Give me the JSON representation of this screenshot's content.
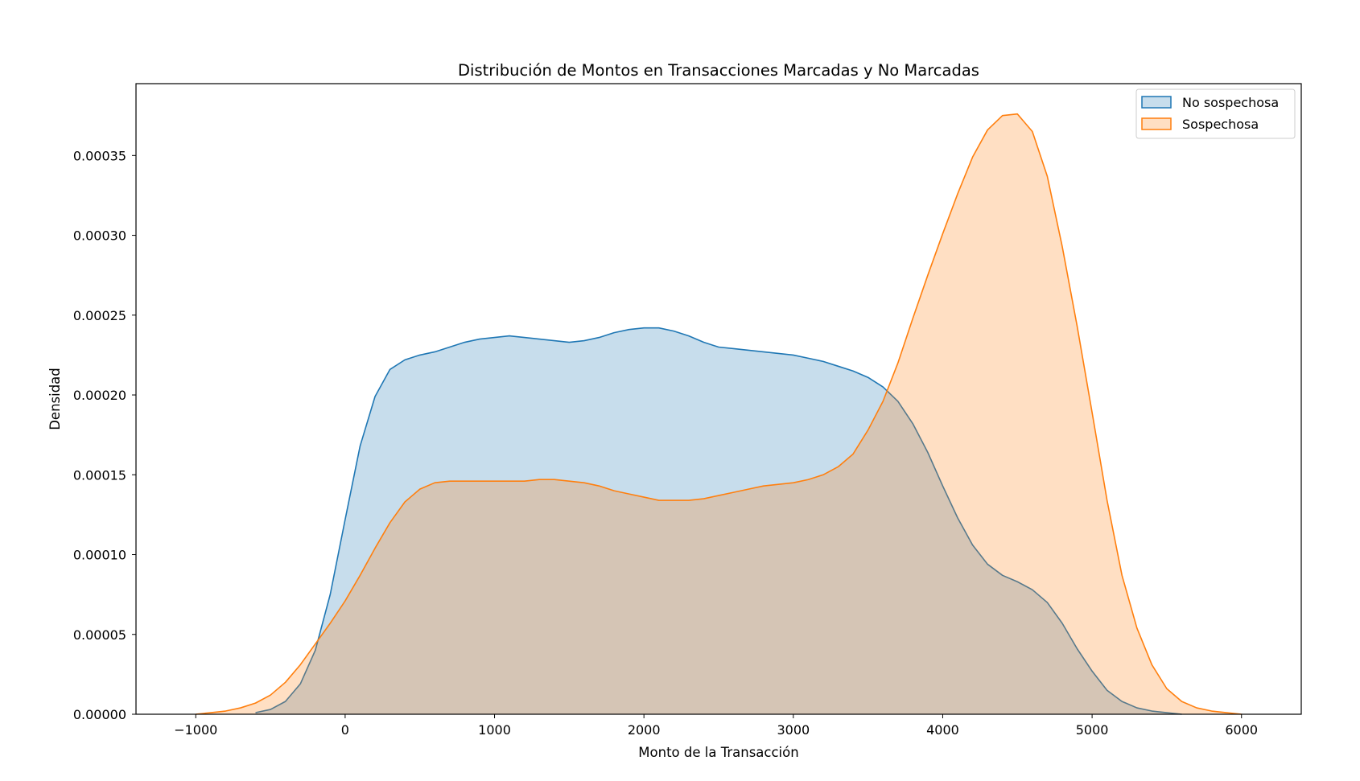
{
  "chart_data": {
    "type": "area",
    "title": "Distribución de Montos en Transacciones Marcadas y No Marcadas",
    "xlabel": "Monto de la Transacción",
    "ylabel": "Densidad",
    "xlim": [
      -1400,
      6400
    ],
    "ylim": [
      0,
      0.000395
    ],
    "xticks": [
      -1000,
      0,
      1000,
      2000,
      3000,
      4000,
      5000,
      6000
    ],
    "xtick_labels": [
      "−1000",
      "0",
      "1000",
      "2000",
      "3000",
      "4000",
      "5000",
      "6000"
    ],
    "yticks": [
      0,
      5e-05,
      0.0001,
      0.00015,
      0.0002,
      0.00025,
      0.0003,
      0.00035
    ],
    "ytick_labels": [
      "0.00000",
      "0.00005",
      "0.00010",
      "0.00015",
      "0.00020",
      "0.00025",
      "0.00030",
      "0.00035"
    ],
    "grid": false,
    "legend_position": "top-right",
    "series": [
      {
        "name": "No sospechosa",
        "line_color": "#1f77b4",
        "fill_color": "#1f77b4",
        "fill_opacity": 0.25,
        "x": [
          -600,
          -500,
          -400,
          -300,
          -200,
          -100,
          0,
          100,
          200,
          300,
          400,
          500,
          600,
          700,
          800,
          900,
          1000,
          1100,
          1200,
          1300,
          1400,
          1500,
          1600,
          1700,
          1800,
          1900,
          2000,
          2100,
          2200,
          2300,
          2400,
          2500,
          2600,
          2700,
          2800,
          2900,
          3000,
          3100,
          3200,
          3300,
          3400,
          3500,
          3600,
          3700,
          3800,
          3900,
          4000,
          4100,
          4200,
          4300,
          4400,
          4500,
          4600,
          4700,
          4800,
          4900,
          5000,
          5100,
          5200,
          5300,
          5400,
          5500,
          5600
        ],
        "y": [
          1e-06,
          3e-06,
          8e-06,
          1.9e-05,
          4e-05,
          7.5e-05,
          0.000122,
          0.000168,
          0.000199,
          0.000216,
          0.000222,
          0.000225,
          0.000227,
          0.00023,
          0.000233,
          0.000235,
          0.000236,
          0.000237,
          0.000236,
          0.000235,
          0.000234,
          0.000233,
          0.000234,
          0.000236,
          0.000239,
          0.000241,
          0.000242,
          0.000242,
          0.00024,
          0.000237,
          0.000233,
          0.00023,
          0.000229,
          0.000228,
          0.000227,
          0.000226,
          0.000225,
          0.000223,
          0.000221,
          0.000218,
          0.000215,
          0.000211,
          0.000205,
          0.000196,
          0.000182,
          0.000164,
          0.000143,
          0.000123,
          0.000106,
          9.4e-05,
          8.7e-05,
          8.3e-05,
          7.8e-05,
          7e-05,
          5.7e-05,
          4.1e-05,
          2.7e-05,
          1.5e-05,
          8e-06,
          4e-06,
          2e-06,
          1e-06,
          0
        ]
      },
      {
        "name": "Sospechosa",
        "line_color": "#ff7f0e",
        "fill_color": "#ff7f0e",
        "fill_opacity": 0.25,
        "x": [
          -1000,
          -900,
          -800,
          -700,
          -600,
          -500,
          -400,
          -300,
          -200,
          -100,
          0,
          100,
          200,
          300,
          400,
          500,
          600,
          700,
          800,
          900,
          1000,
          1100,
          1200,
          1300,
          1400,
          1500,
          1600,
          1700,
          1800,
          1900,
          2000,
          2100,
          2200,
          2300,
          2400,
          2500,
          2600,
          2700,
          2800,
          2900,
          3000,
          3100,
          3200,
          3300,
          3400,
          3500,
          3600,
          3700,
          3800,
          3900,
          4000,
          4100,
          4200,
          4300,
          4400,
          4500,
          4600,
          4700,
          4800,
          4900,
          5000,
          5100,
          5200,
          5300,
          5400,
          5500,
          5600,
          5700,
          5800,
          5900,
          6000
        ],
        "y": [
          0,
          1e-06,
          2e-06,
          4e-06,
          7e-06,
          1.2e-05,
          2e-05,
          3.1e-05,
          4.4e-05,
          5.7e-05,
          7.1e-05,
          8.7e-05,
          0.000104,
          0.00012,
          0.000133,
          0.000141,
          0.000145,
          0.000146,
          0.000146,
          0.000146,
          0.000146,
          0.000146,
          0.000146,
          0.000147,
          0.000147,
          0.000146,
          0.000145,
          0.000143,
          0.00014,
          0.000138,
          0.000136,
          0.000134,
          0.000134,
          0.000134,
          0.000135,
          0.000137,
          0.000139,
          0.000141,
          0.000143,
          0.000144,
          0.000145,
          0.000147,
          0.00015,
          0.000155,
          0.000163,
          0.000178,
          0.000196,
          0.00022,
          0.000248,
          0.000275,
          0.000301,
          0.000326,
          0.000349,
          0.000366,
          0.000375,
          0.000376,
          0.000365,
          0.000337,
          0.000293,
          0.000243,
          0.000189,
          0.000134,
          8.7e-05,
          5.4e-05,
          3.1e-05,
          1.6e-05,
          8e-06,
          4e-06,
          2e-06,
          1e-06,
          0
        ]
      }
    ]
  }
}
